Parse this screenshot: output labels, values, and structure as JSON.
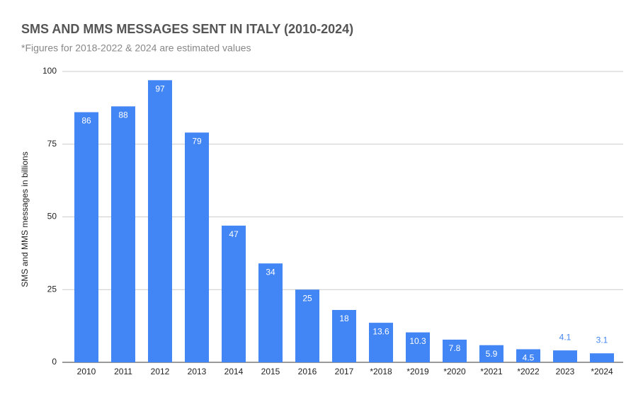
{
  "chart_data": {
    "type": "bar",
    "title": "SMS AND MMS MESSAGES SENT IN ITALY (2010-2024)",
    "subtitle": "*Figures for 2018-2022 & 2024 are estimated values",
    "y_label": "SMS and MMS messages in billions",
    "categories": [
      "2010",
      "2011",
      "2012",
      "2013",
      "2014",
      "2015",
      "2016",
      "2017",
      "*2018",
      "*2019",
      "*2020",
      "*2021",
      "*2022",
      "2023",
      "*2024"
    ],
    "values": [
      86,
      88,
      97,
      79,
      47,
      34,
      25,
      18,
      13.6,
      10.3,
      7.8,
      5.9,
      4.5,
      4.1,
      3.1
    ],
    "color": "#4285f4",
    "ylim": [
      0,
      100
    ],
    "yticks": [
      0,
      25,
      50,
      75,
      100
    ],
    "grid": true
  }
}
